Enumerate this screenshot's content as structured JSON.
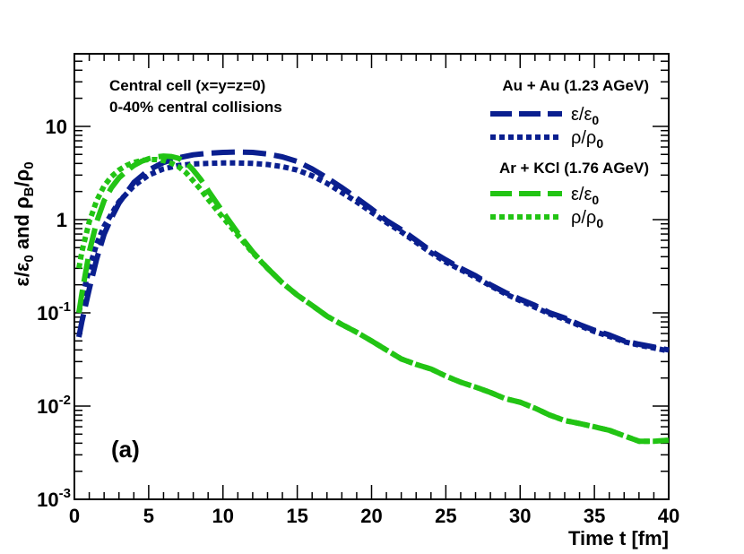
{
  "chart_data": {
    "type": "line",
    "title": "",
    "xlabel": "Time t [fm]",
    "ylabel_main": "ε/ε",
    "ylabel_sub0": "0",
    "ylabel_and": " and ρ",
    "ylabel_subB": "B",
    "ylabel_slash": "/ρ",
    "ylabel_sub0b": "0",
    "yscale": "log",
    "xlim": [
      0,
      40
    ],
    "ylim": [
      0.001,
      60
    ],
    "x_ticks": [
      0,
      5,
      10,
      15,
      20,
      25,
      30,
      35,
      40
    ],
    "x_tick_labels": [
      "0",
      "5",
      "10",
      "15",
      "20",
      "25",
      "30",
      "35",
      "40"
    ],
    "y_ticks": [
      {
        "value": 0.001,
        "base": "10",
        "exp": "-3"
      },
      {
        "value": 0.01,
        "base": "10",
        "exp": "-2"
      },
      {
        "value": 0.1,
        "base": "10",
        "exp": "-1"
      },
      {
        "value": 1,
        "base": "1",
        "exp": ""
      },
      {
        "value": 10,
        "base": "10",
        "exp": ""
      }
    ],
    "annotations": {
      "line1": "Central cell (x=y=z=0)",
      "line2": "0-40% central collisions",
      "panel": "(a)"
    },
    "legend": {
      "group1": "Au + Au (1.23 AGeV)",
      "group2": "Ar + KCl (1.76 AGeV)",
      "eps_main": "ε/ε",
      "eps_sub": "0",
      "rho_main": "ρ/ρ",
      "rho_sub": "0"
    },
    "series": [
      {
        "name": "Au + Au ε/ε0",
        "color": "#0a1f8f",
        "style": "dashed",
        "x": [
          0.3,
          0.5,
          1,
          1.5,
          2,
          2.5,
          3,
          4,
          5,
          6,
          7,
          8,
          9,
          10,
          11,
          12,
          13,
          14,
          15,
          16,
          17,
          18,
          19,
          20,
          21,
          22,
          23,
          24,
          25,
          26,
          27,
          28,
          29,
          30,
          31,
          32,
          33,
          34,
          35,
          36,
          37,
          38,
          39,
          40
        ],
        "values": [
          0.055,
          0.08,
          0.18,
          0.38,
          0.7,
          1.05,
          1.5,
          2.5,
          3.4,
          4.1,
          4.6,
          4.95,
          5.15,
          5.25,
          5.3,
          5.25,
          5.05,
          4.7,
          4.2,
          3.5,
          2.8,
          2.2,
          1.7,
          1.3,
          0.98,
          0.78,
          0.6,
          0.46,
          0.37,
          0.3,
          0.25,
          0.2,
          0.165,
          0.14,
          0.12,
          0.1,
          0.088,
          0.075,
          0.065,
          0.058,
          0.05,
          0.046,
          0.043,
          0.04
        ]
      },
      {
        "name": "Au + Au ρ/ρ0",
        "color": "#0a1f8f",
        "style": "dotted",
        "x": [
          0.3,
          0.5,
          1,
          1.5,
          2,
          2.5,
          3,
          4,
          5,
          6,
          7,
          8,
          9,
          10,
          11,
          12,
          13,
          14,
          15,
          16,
          17,
          18,
          19,
          20,
          21,
          22,
          23,
          24,
          25,
          26,
          27,
          28,
          29,
          30,
          31,
          32,
          33,
          34,
          35,
          36,
          37,
          38,
          39,
          40
        ],
        "values": [
          0.1,
          0.14,
          0.3,
          0.55,
          0.85,
          1.15,
          1.55,
          2.3,
          3.0,
          3.5,
          3.8,
          3.95,
          4.0,
          4.05,
          4.05,
          4.0,
          3.9,
          3.7,
          3.4,
          2.95,
          2.45,
          1.95,
          1.55,
          1.2,
          0.93,
          0.74,
          0.57,
          0.44,
          0.35,
          0.29,
          0.24,
          0.195,
          0.16,
          0.135,
          0.115,
          0.097,
          0.085,
          0.073,
          0.063,
          0.056,
          0.049,
          0.045,
          0.042,
          0.039
        ]
      },
      {
        "name": "Ar + KCl ε/ε0",
        "color": "#22c414",
        "style": "dashed",
        "x": [
          0.3,
          0.5,
          1,
          1.5,
          2,
          2.5,
          3,
          3.5,
          4,
          4.5,
          5,
          5.5,
          6,
          6.5,
          7,
          7.5,
          8,
          8.5,
          9,
          10,
          11,
          12,
          13,
          14,
          15,
          16,
          17,
          18,
          19,
          20,
          21,
          22,
          23,
          24,
          25,
          26,
          27,
          28,
          29,
          30,
          31,
          32,
          33,
          34,
          35,
          36,
          37,
          38,
          39,
          40
        ],
        "values": [
          0.1,
          0.16,
          0.45,
          0.95,
          1.6,
          2.2,
          2.8,
          3.3,
          3.8,
          4.2,
          4.5,
          4.7,
          4.8,
          4.75,
          4.55,
          4.1,
          3.4,
          2.7,
          2.05,
          1.2,
          0.72,
          0.45,
          0.3,
          0.21,
          0.155,
          0.12,
          0.092,
          0.075,
          0.062,
          0.05,
          0.04,
          0.032,
          0.028,
          0.025,
          0.021,
          0.018,
          0.016,
          0.014,
          0.012,
          0.011,
          0.0095,
          0.008,
          0.007,
          0.0065,
          0.006,
          0.0055,
          0.0048,
          0.0042,
          0.0042,
          0.0043
        ]
      },
      {
        "name": "Ar + KCl ρ/ρ0",
        "color": "#22c414",
        "style": "dotted",
        "x": [
          0.3,
          0.5,
          1,
          1.5,
          2,
          2.5,
          3,
          3.5,
          4,
          4.5,
          5,
          5.5,
          6,
          6.5,
          7,
          7.5,
          8,
          8.5,
          9,
          10,
          11,
          12,
          13,
          14,
          15,
          16,
          17,
          18,
          19,
          20,
          21,
          22,
          23,
          24,
          25,
          26,
          27,
          28,
          29,
          30,
          31,
          32,
          33,
          34,
          35,
          36,
          37,
          38,
          39,
          40
        ],
        "values": [
          0.3,
          0.45,
          0.95,
          1.6,
          2.3,
          2.9,
          3.4,
          3.8,
          4.1,
          4.3,
          4.4,
          4.4,
          4.3,
          4.05,
          3.7,
          3.2,
          2.6,
          2.1,
          1.65,
          1.05,
          0.68,
          0.44,
          0.3,
          0.21,
          0.155,
          0.12,
          0.092,
          0.075,
          0.062,
          0.05,
          0.04,
          0.032,
          0.028,
          0.025,
          0.021,
          0.018,
          0.016,
          0.014,
          0.012,
          0.011,
          0.0095,
          0.008,
          0.007,
          0.0065,
          0.006,
          0.0055,
          0.0048,
          0.0042,
          0.0042,
          0.0043
        ]
      }
    ]
  }
}
